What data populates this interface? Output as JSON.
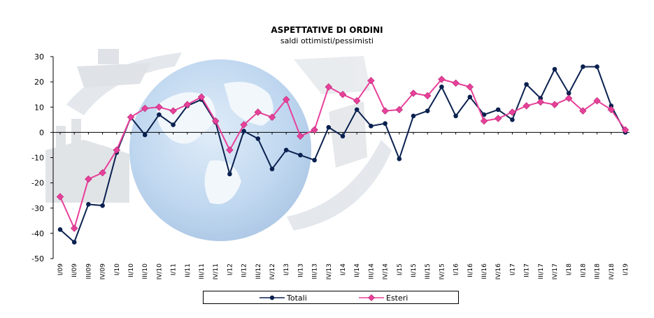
{
  "chart_data": {
    "type": "line",
    "title": "ASPETTATIVE DI ORDINI",
    "subtitle": "saldi ottimisti/pessimisti",
    "xlabel": "",
    "ylabel": "",
    "ylim": [
      -50,
      30
    ],
    "yticks": [
      30,
      20,
      10,
      0,
      -10,
      -20,
      -30,
      -40,
      -50
    ],
    "grid": false,
    "legend_position": "bottom",
    "categories": [
      "I/09",
      "II/09",
      "III/09",
      "IV/09",
      "I/10",
      "II/10",
      "III/10",
      "IV/10",
      "I/11",
      "II/11",
      "III/11",
      "IV/11",
      "I/12",
      "II/12",
      "III/12",
      "IV/12",
      "I/13",
      "II/13",
      "III/13",
      "IV/13",
      "I/14",
      "II/14",
      "III/14",
      "IV/14",
      "I/15",
      "II/15",
      "III/15",
      "IV/15",
      "I/16",
      "II/16",
      "III/16",
      "IV/16",
      "I/17",
      "II/17",
      "III/17",
      "IV/17",
      "I/18",
      "II/18",
      "III/18",
      "IV/18",
      "I/19"
    ],
    "series": [
      {
        "name": "Totali",
        "color": "#0a2150",
        "marker": "circle",
        "values": [
          -38.5,
          -43.5,
          -28.5,
          -29,
          -8,
          6,
          -1,
          7,
          3,
          10.5,
          13,
          4,
          -16.5,
          0.5,
          -2.5,
          -14.5,
          -7,
          -9,
          -11,
          2,
          -1.5,
          9,
          2.5,
          3.5,
          -10.5,
          6.5,
          8.5,
          18,
          6.5,
          14,
          7,
          9,
          5,
          19,
          13.5,
          25,
          15.5,
          26,
          26,
          10.5,
          0
        ]
      },
      {
        "name": "Esteri",
        "color": "#e8409a",
        "marker": "diamond",
        "values": [
          -25.5,
          -38,
          -18.5,
          -16,
          -7,
          6,
          9.5,
          10,
          8.5,
          11,
          14,
          4.5,
          -7,
          3,
          8,
          6,
          13,
          -1.5,
          1,
          18,
          15,
          12.5,
          20.5,
          8.5,
          9,
          15.5,
          14.5,
          21,
          19.5,
          18,
          4.5,
          5.5,
          8,
          10.5,
          12,
          11,
          13.5,
          8.5,
          12.5,
          9,
          1
        ]
      }
    ]
  },
  "legend": {
    "totali_label": "Totali",
    "esteri_label": "Esteri"
  }
}
